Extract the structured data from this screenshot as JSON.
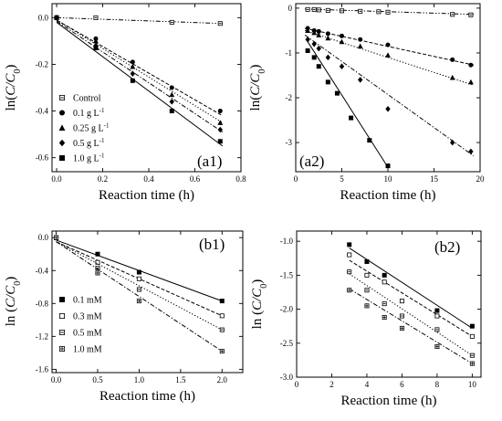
{
  "chart_data": [
    {
      "id": "a1",
      "type": "scatter",
      "panel_label": "(a1)",
      "xlabel": "Reaction time (h)",
      "ylabel_prefix": "ln(",
      "ylabel_var": "C/C",
      "ylabel_sub": "0",
      "ylabel_suffix": ")",
      "xlim": [
        -0.02,
        0.8
      ],
      "ylim": [
        -0.66,
        0.06
      ],
      "xticks": [
        0.0,
        0.2,
        0.4,
        0.6,
        0.8
      ],
      "xtick_labels": [
        "0.0",
        "0.2",
        "0.4",
        "0.6",
        "0.8"
      ],
      "yticks": [
        0.0,
        -0.2,
        -0.4,
        -0.6
      ],
      "ytick_labels": [
        "0.0",
        "-0.2",
        "-0.4",
        "-0.6"
      ],
      "legend_position": "lower-left",
      "series": [
        {
          "name": "Control",
          "marker": "square-open-dot",
          "line": "dashdotdot",
          "points": [
            [
              0,
              0
            ],
            [
              0.17,
              0.0
            ],
            [
              0.5,
              -0.02
            ],
            [
              0.71,
              -0.025
            ]
          ],
          "fit": [
            [
              0,
              0
            ],
            [
              0.72,
              -0.025
            ]
          ]
        },
        {
          "name": "0.1 g L",
          "unit_sup": "-1",
          "marker": "circle",
          "line": "dash",
          "points": [
            [
              0,
              0
            ],
            [
              0.17,
              -0.09
            ],
            [
              0.33,
              -0.19
            ],
            [
              0.5,
              -0.3
            ],
            [
              0.71,
              -0.4
            ]
          ],
          "fit": [
            [
              0,
              -0.01
            ],
            [
              0.72,
              -0.42
            ]
          ]
        },
        {
          "name": "0.25 g L",
          "unit_sup": "-1",
          "marker": "triangle",
          "line": "dot",
          "points": [
            [
              0,
              0
            ],
            [
              0.17,
              -0.1
            ],
            [
              0.33,
              -0.21
            ],
            [
              0.5,
              -0.33
            ],
            [
              0.71,
              -0.45
            ]
          ],
          "fit": [
            [
              0,
              -0.01
            ],
            [
              0.72,
              -0.45
            ]
          ]
        },
        {
          "name": "0.5 g L",
          "unit_sup": "-1",
          "marker": "diamond",
          "line": "dashdot",
          "points": [
            [
              0,
              0
            ],
            [
              0.17,
              -0.12
            ],
            [
              0.33,
              -0.24
            ],
            [
              0.5,
              -0.36
            ],
            [
              0.71,
              -0.48
            ]
          ],
          "fit": [
            [
              0,
              -0.015
            ],
            [
              0.72,
              -0.49
            ]
          ]
        },
        {
          "name": "1.0 g L",
          "unit_sup": "-1",
          "marker": "square",
          "line": "solid",
          "points": [
            [
              0,
              0
            ],
            [
              0.17,
              -0.13
            ],
            [
              0.33,
              -0.27
            ],
            [
              0.5,
              -0.4
            ],
            [
              0.71,
              -0.53
            ]
          ],
          "fit": [
            [
              0,
              -0.02
            ],
            [
              0.72,
              -0.55
            ]
          ]
        }
      ]
    },
    {
      "id": "a2",
      "type": "scatter",
      "panel_label": "(a2)",
      "xlabel": "Reaction time (h)",
      "ylabel_prefix": "ln(",
      "ylabel_var": "C/C",
      "ylabel_sub": "0",
      "ylabel_suffix": ")",
      "xlim": [
        0,
        20
      ],
      "ylim": [
        -3.65,
        0.1
      ],
      "xticks": [
        0,
        5,
        10,
        15,
        20
      ],
      "xtick_labels": [
        "0",
        "5",
        "10",
        "15",
        "20"
      ],
      "yticks": [
        0,
        -1,
        -2,
        -3
      ],
      "ytick_labels": [
        "0",
        "-1",
        "-2",
        "-3"
      ],
      "series": [
        {
          "name": "Control",
          "marker": "square-open-dot",
          "line": "dashdotdot",
          "points": [
            [
              1.3,
              -0.03
            ],
            [
              2,
              -0.03
            ],
            [
              2.5,
              -0.04
            ],
            [
              3.5,
              -0.05
            ],
            [
              5,
              -0.06
            ],
            [
              7,
              -0.07
            ],
            [
              9,
              -0.08
            ],
            [
              10,
              -0.09
            ],
            [
              17,
              -0.14
            ],
            [
              19,
              -0.15
            ]
          ],
          "fit": [
            [
              1,
              -0.02
            ],
            [
              19.3,
              -0.14
            ]
          ]
        },
        {
          "name": "0.1 g L",
          "unit_sup": "-1",
          "marker": "circle",
          "line": "dash",
          "points": [
            [
              1.3,
              -0.45
            ],
            [
              2,
              -0.5
            ],
            [
              2.5,
              -0.52
            ],
            [
              3.5,
              -0.57
            ],
            [
              5,
              -0.62
            ],
            [
              7,
              -0.7
            ],
            [
              10,
              -0.82
            ],
            [
              17,
              -1.15
            ],
            [
              19,
              -1.27
            ]
          ],
          "fit": [
            [
              1,
              -0.45
            ],
            [
              19.3,
              -1.27
            ]
          ]
        },
        {
          "name": "0.25 g L",
          "unit_sup": "-1",
          "marker": "triangle",
          "line": "dot",
          "points": [
            [
              1.3,
              -0.5
            ],
            [
              2,
              -0.55
            ],
            [
              2.5,
              -0.6
            ],
            [
              3.5,
              -0.67
            ],
            [
              5,
              -0.75
            ],
            [
              7,
              -0.85
            ],
            [
              10,
              -1.05
            ],
            [
              17,
              -1.55
            ],
            [
              19,
              -1.65
            ]
          ],
          "fit": [
            [
              1,
              -0.5
            ],
            [
              19.3,
              -1.72
            ]
          ]
        },
        {
          "name": "0.5 g L",
          "unit_sup": "-1",
          "marker": "diamond",
          "line": "dashdot",
          "points": [
            [
              1.3,
              -0.7
            ],
            [
              2,
              -0.8
            ],
            [
              2.5,
              -0.9
            ],
            [
              3.5,
              -1.1
            ],
            [
              5,
              -1.3
            ],
            [
              7,
              -1.6
            ],
            [
              10,
              -2.25
            ],
            [
              17,
              -3.0
            ],
            [
              19,
              -3.2
            ]
          ],
          "fit": [
            [
              1,
              -0.6
            ],
            [
              19.3,
              -3.3
            ]
          ]
        },
        {
          "name": "1.0 g L",
          "unit_sup": "-1",
          "marker": "square",
          "line": "solid",
          "points": [
            [
              1.3,
              -0.95
            ],
            [
              2,
              -1.1
            ],
            [
              2.5,
              -1.3
            ],
            [
              3.5,
              -1.65
            ],
            [
              4.5,
              -1.9
            ],
            [
              6,
              -2.45
            ],
            [
              8,
              -2.95
            ],
            [
              10,
              -3.52
            ]
          ],
          "fit": [
            [
              1.3,
              -0.75
            ],
            [
              10,
              -3.55
            ]
          ]
        }
      ]
    },
    {
      "id": "b1",
      "type": "scatter",
      "panel_label": "(b1)",
      "xlabel": "Reaction time (h)",
      "ylabel_prefix": "ln (",
      "ylabel_var": "C/C",
      "ylabel_sub": "0",
      "ylabel_suffix": ")",
      "xlim": [
        -0.05,
        2.25
      ],
      "ylim": [
        -1.64,
        0.08
      ],
      "xticks": [
        0.0,
        0.5,
        1.0,
        1.5,
        2.0
      ],
      "xtick_labels": [
        "0.0",
        "0.5",
        "1.0",
        "1.5",
        "2.0"
      ],
      "yticks": [
        0.0,
        -0.4,
        -0.8,
        -1.2,
        -1.6
      ],
      "ytick_labels": [
        "0.0",
        "-0.4",
        "-0.8",
        "-1.2",
        "-1.6"
      ],
      "legend_position": "lower-left",
      "series": [
        {
          "name": "0.1 mM",
          "marker": "square",
          "line": "solid",
          "points": [
            [
              0,
              0
            ],
            [
              0.5,
              -0.2
            ],
            [
              1.0,
              -0.42
            ],
            [
              2.0,
              -0.77
            ]
          ],
          "fit": [
            [
              0,
              -0.03
            ],
            [
              2.0,
              -0.77
            ]
          ]
        },
        {
          "name": "0.3 mM",
          "marker": "square-open",
          "line": "dash",
          "points": [
            [
              0,
              0
            ],
            [
              0.5,
              -0.3
            ],
            [
              1.0,
              -0.5
            ],
            [
              2.0,
              -0.95
            ]
          ],
          "fit": [
            [
              0,
              -0.05
            ],
            [
              2.0,
              -0.95
            ]
          ]
        },
        {
          "name": "0.5 mM",
          "marker": "square-open-dot",
          "line": "dot",
          "points": [
            [
              0,
              0
            ],
            [
              0.5,
              -0.37
            ],
            [
              1.0,
              -0.63
            ],
            [
              2.0,
              -1.12
            ]
          ],
          "fit": [
            [
              0,
              -0.05
            ],
            [
              2.0,
              -1.12
            ]
          ]
        },
        {
          "name": "1.0 mM",
          "marker": "square-cross",
          "line": "dashdot",
          "points": [
            [
              0,
              0
            ],
            [
              0.5,
              -0.43
            ],
            [
              1.0,
              -0.77
            ],
            [
              2.0,
              -1.38
            ]
          ],
          "fit": [
            [
              0,
              -0.05
            ],
            [
              2.0,
              -1.38
            ]
          ]
        }
      ]
    },
    {
      "id": "b2",
      "type": "scatter",
      "panel_label": "(b2)",
      "xlabel": "Reaction time (h)",
      "ylabel_prefix": "ln (",
      "ylabel_var": "C/C",
      "ylabel_sub": "0",
      "ylabel_suffix": ")",
      "xlim": [
        0,
        10.5
      ],
      "ylim": [
        -3.0,
        -0.85
      ],
      "xticks": [
        0,
        2,
        4,
        6,
        8,
        10
      ],
      "xtick_labels": [
        "0",
        "2",
        "4",
        "6",
        "8",
        "10"
      ],
      "yticks": [
        -1.0,
        -1.5,
        -2.0,
        -2.5,
        -3.0
      ],
      "ytick_labels": [
        "-1.0",
        "-1.5",
        "-2.0",
        "-2.5",
        "-3.0"
      ],
      "series": [
        {
          "name": "0.1 mM",
          "marker": "square",
          "line": "solid",
          "points": [
            [
              3,
              -1.05
            ],
            [
              4,
              -1.3
            ],
            [
              5,
              -1.5
            ],
            [
              8,
              -2.02
            ],
            [
              10,
              -2.25
            ]
          ],
          "fit": [
            [
              3,
              -1.1
            ],
            [
              10,
              -2.28
            ]
          ]
        },
        {
          "name": "0.3 mM",
          "marker": "square-open",
          "line": "dash",
          "points": [
            [
              3,
              -1.2
            ],
            [
              4,
              -1.5
            ],
            [
              5,
              -1.6
            ],
            [
              6,
              -1.88
            ],
            [
              8,
              -2.1
            ],
            [
              10,
              -2.4
            ]
          ],
          "fit": [
            [
              3,
              -1.28
            ],
            [
              10,
              -2.4
            ]
          ]
        },
        {
          "name": "0.5 mM",
          "marker": "square-open-dot",
          "line": "dot",
          "points": [
            [
              3,
              -1.45
            ],
            [
              4,
              -1.72
            ],
            [
              5,
              -1.92
            ],
            [
              6,
              -2.1
            ],
            [
              8,
              -2.3
            ],
            [
              10,
              -2.68
            ]
          ],
          "fit": [
            [
              3,
              -1.48
            ],
            [
              10,
              -2.68
            ]
          ]
        },
        {
          "name": "1.0 mM",
          "marker": "square-cross",
          "line": "dashdot",
          "points": [
            [
              3,
              -1.72
            ],
            [
              4,
              -1.95
            ],
            [
              5,
              -2.12
            ],
            [
              6,
              -2.28
            ],
            [
              8,
              -2.55
            ],
            [
              10,
              -2.8
            ]
          ],
          "fit": [
            [
              3,
              -1.7
            ],
            [
              10,
              -2.8
            ]
          ]
        }
      ]
    }
  ]
}
